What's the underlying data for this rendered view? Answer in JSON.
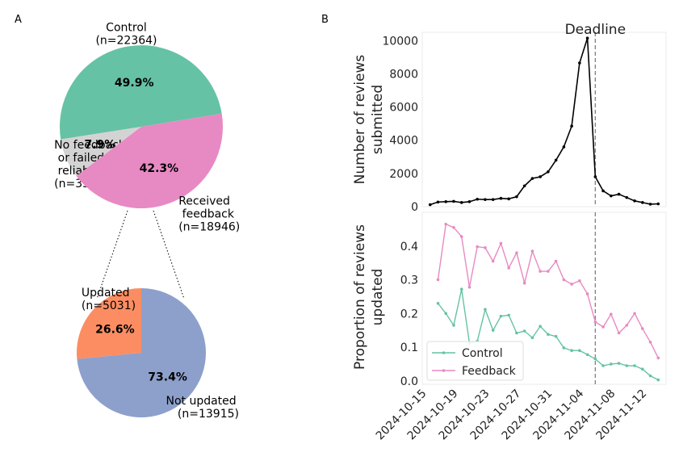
{
  "panels": {
    "a": "A",
    "b": "B"
  },
  "colors": {
    "control": "#66c2a5",
    "feedback": "#e78ac3",
    "no_feedback": "#d3d3d3",
    "updated": "#fc8d62",
    "not_updated": "#8da0cb",
    "line": "#000000",
    "deadline": "#808080"
  },
  "chart_data": [
    {
      "type": "pie",
      "slices": [
        {
          "label": [
            "Control",
            "(n=22364)"
          ],
          "pct_label": "49.9%",
          "value": 22364,
          "color": "#66c2a5"
        },
        {
          "label": [
            "No feedback",
            " or failed",
            " reliability test",
            "(n=3521)"
          ],
          "pct_label": "7.9%",
          "value": 3521,
          "color": "#d3d3d3"
        },
        {
          "label": [
            "Received",
            " feedback",
            "(n=18946)"
          ],
          "pct_label": "42.3%",
          "value": 18946,
          "color": "#e78ac3"
        }
      ]
    },
    {
      "type": "pie",
      "slices": [
        {
          "label": [
            "Updated",
            "(n=5031)"
          ],
          "pct_label": "26.6%",
          "value": 5031,
          "color": "#fc8d62"
        },
        {
          "label": [
            "Not updated",
            "    (n=13915)"
          ],
          "pct_label": "73.4%",
          "value": 13915,
          "color": "#8da0cb"
        }
      ]
    },
    {
      "type": "line",
      "ylabel": [
        "Number of reviews",
        "submitted"
      ],
      "ylim": [
        0,
        10500
      ],
      "yticks": [
        0,
        2000,
        4000,
        6000,
        8000,
        10000
      ],
      "x": [
        "2024-10-15",
        "2024-10-16",
        "2024-10-17",
        "2024-10-18",
        "2024-10-19",
        "2024-10-20",
        "2024-10-21",
        "2024-10-22",
        "2024-10-23",
        "2024-10-24",
        "2024-10-25",
        "2024-10-26",
        "2024-10-27",
        "2024-10-28",
        "2024-10-29",
        "2024-10-30",
        "2024-10-31",
        "2024-11-01",
        "2024-11-02",
        "2024-11-03",
        "2024-11-04",
        "2024-11-05",
        "2024-11-06",
        "2024-11-07",
        "2024-11-08",
        "2024-11-09",
        "2024-11-10",
        "2024-11-11",
        "2024-11-12",
        "2024-11-13"
      ],
      "series": [
        {
          "values": [
            120,
            280,
            300,
            320,
            250,
            300,
            450,
            430,
            430,
            500,
            470,
            600,
            1250,
            1700,
            1800,
            2100,
            2800,
            3600,
            4850,
            8650,
            10150,
            1800,
            950,
            650,
            750,
            550,
            350,
            250,
            150,
            170
          ]
        }
      ],
      "annotation": "Deadline",
      "deadline_x": "2024-11-05"
    },
    {
      "type": "line",
      "ylabel": [
        "Proportion of reviews",
        "updated"
      ],
      "ylim": [
        -0.01,
        0.5
      ],
      "yticks": [
        0.0,
        0.1,
        0.2,
        0.3,
        0.4
      ],
      "xticks": [
        "2024-10-15",
        "2024-10-19",
        "2024-10-23",
        "2024-10-27",
        "2024-10-31",
        "2024-11-04",
        "2024-11-08",
        "2024-11-12"
      ],
      "x": [
        "2024-10-16",
        "2024-10-17",
        "2024-10-18",
        "2024-10-19",
        "2024-10-20",
        "2024-10-21",
        "2024-10-22",
        "2024-10-23",
        "2024-10-24",
        "2024-10-25",
        "2024-10-26",
        "2024-10-27",
        "2024-10-28",
        "2024-10-29",
        "2024-10-30",
        "2024-10-31",
        "2024-11-01",
        "2024-11-02",
        "2024-11-03",
        "2024-11-04",
        "2024-11-05",
        "2024-11-06",
        "2024-11-07",
        "2024-11-08",
        "2024-11-09",
        "2024-11-10",
        "2024-11-11",
        "2024-11-12",
        "2024-11-13"
      ],
      "series": [
        {
          "name": "Control",
          "color": "#66c2a5",
          "values": [
            0.23,
            0.2,
            0.165,
            0.272,
            0.112,
            0.118,
            0.212,
            0.15,
            0.192,
            0.195,
            0.142,
            0.148,
            0.128,
            0.162,
            0.138,
            0.132,
            0.098,
            0.09,
            0.09,
            0.078,
            0.065,
            0.045,
            0.05,
            0.052,
            0.045,
            0.045,
            0.035,
            0.015,
            0.003
          ]
        },
        {
          "name": "Feedback",
          "color": "#e78ac3",
          "values": [
            0.3,
            0.465,
            0.455,
            0.428,
            0.278,
            0.398,
            0.395,
            0.355,
            0.408,
            0.335,
            0.38,
            0.29,
            0.385,
            0.325,
            0.325,
            0.355,
            0.3,
            0.287,
            0.297,
            0.258,
            0.175,
            0.16,
            0.198,
            0.142,
            0.165,
            0.2,
            0.155,
            0.115,
            0.068
          ]
        }
      ],
      "deadline_x": "2024-11-05"
    }
  ]
}
